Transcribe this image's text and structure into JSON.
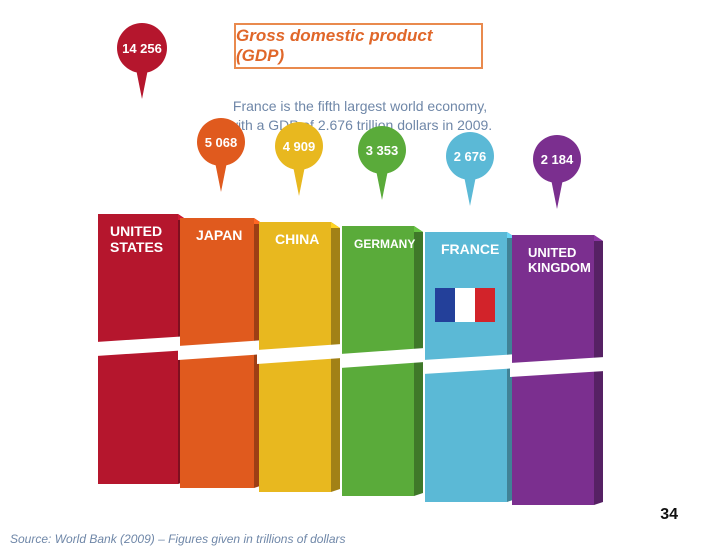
{
  "title": "Gross domestic product (GDP)",
  "subtitle_line1": "France is the fifth largest world economy,",
  "subtitle_line2": "with a GDP of 2.676 trillion dollars in 2009.",
  "source": "Source: World Bank (2009) – Figures given in trillions of dollars",
  "page_number": "34",
  "chart_data": {
    "type": "bar",
    "title": "Gross domestic product (GDP)",
    "categories": [
      "UNITED STATES",
      "JAPAN",
      "CHINA",
      "GERMANY",
      "FRANCE",
      "UNITED KINGDOM"
    ],
    "category_lines": [
      [
        "UNITED",
        "STATES"
      ],
      [
        "JAPAN"
      ],
      [
        "CHINA"
      ],
      [
        "GERMANY"
      ],
      [
        "FRANCE"
      ],
      [
        "UNITED",
        "KINGDOM"
      ]
    ],
    "values": [
      14256,
      5068,
      4909,
      3353,
      2676,
      2184
    ],
    "value_labels": [
      "14 256",
      "5 068",
      "4 909",
      "3 353",
      "2 676",
      "2 184"
    ],
    "colors": [
      "#b5162d",
      "#e05a1e",
      "#e8b81f",
      "#5aab3a",
      "#5bb9d6",
      "#7b2f8f"
    ],
    "flag_colors": [
      "#23409a",
      "#ffffff",
      "#d2232a"
    ],
    "ylabel": "",
    "xlabel": ""
  }
}
